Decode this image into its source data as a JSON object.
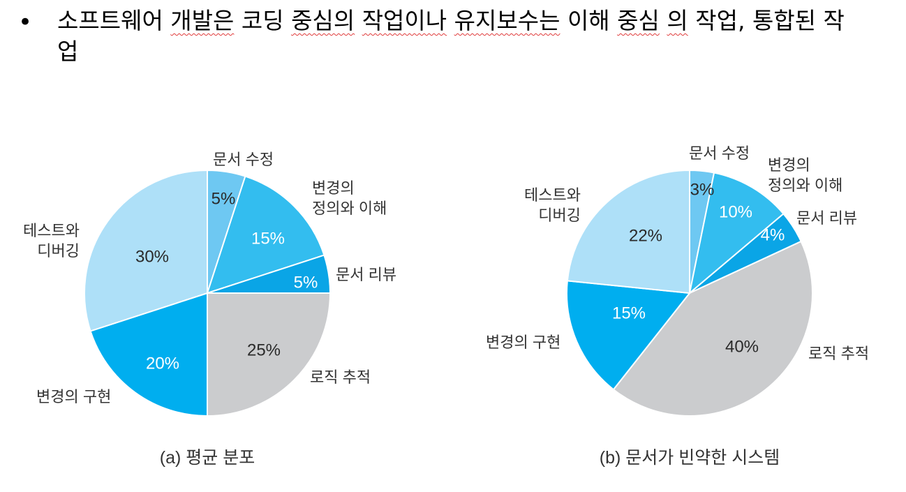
{
  "bullet": {
    "marker": "•",
    "segments": [
      {
        "text": "소프트웨어 ",
        "squiggle": false
      },
      {
        "text": "개발은",
        "squiggle": true
      },
      {
        "text": " 코딩 ",
        "squiggle": false
      },
      {
        "text": "중심의",
        "squiggle": true
      },
      {
        "text": " ",
        "squiggle": false
      },
      {
        "text": "작업이나",
        "squiggle": true
      },
      {
        "text": " ",
        "squiggle": false
      },
      {
        "text": "유지보수는",
        "squiggle": true
      },
      {
        "text": " 이해 ",
        "squiggle": false
      },
      {
        "text": "중심",
        "squiggle": true
      },
      {
        "text": " ",
        "squiggle": false
      },
      {
        "text": "의",
        "squiggle": true
      },
      {
        "text": " 작업, 통합된 작업",
        "squiggle": false
      }
    ]
  },
  "colors": {
    "doc_edit": "#6ec8f2",
    "change_def": "#33bdef",
    "doc_review": "#0aa5e6",
    "logic_trace": "#cbccce",
    "change_impl": "#00aeef",
    "test_debug": "#aee0f8"
  },
  "chart_data": [
    {
      "type": "pie",
      "title": "(a) 평균 분포",
      "slices": [
        {
          "label": "문서 수정",
          "value": 5,
          "value_label": "5%",
          "color_key": "doc_edit"
        },
        {
          "label": "변경의\n정의와 이해",
          "value": 15,
          "value_label": "15%",
          "color_key": "change_def"
        },
        {
          "label": "문서 리뷰",
          "value": 5,
          "value_label": "5%",
          "color_key": "doc_review"
        },
        {
          "label": "로직 추적",
          "value": 25,
          "value_label": "25%",
          "color_key": "logic_trace"
        },
        {
          "label": "변경의 구현",
          "value": 20,
          "value_label": "20%",
          "color_key": "change_impl"
        },
        {
          "label": "테스트와\n디버깅",
          "value": 30,
          "value_label": "30%",
          "color_key": "test_debug"
        }
      ]
    },
    {
      "type": "pie",
      "title": "(b) 문서가 빈약한 시스템",
      "slices": [
        {
          "label": "문서 수정",
          "value": 3,
          "value_label": "3%",
          "color_key": "doc_edit"
        },
        {
          "label": "변경의\n정의와 이해",
          "value": 10,
          "value_label": "10%",
          "color_key": "change_def"
        },
        {
          "label": "문서 리뷰",
          "value": 4,
          "value_label": "4%",
          "color_key": "doc_review"
        },
        {
          "label": "로직 추적",
          "value": 40,
          "value_label": "40%",
          "color_key": "logic_trace"
        },
        {
          "label": "변경의 구현",
          "value": 15,
          "value_label": "15%",
          "color_key": "change_impl"
        },
        {
          "label": "테스트와\n디버깅",
          "value": 22,
          "value_label": "22%",
          "color_key": "test_debug"
        }
      ]
    }
  ]
}
